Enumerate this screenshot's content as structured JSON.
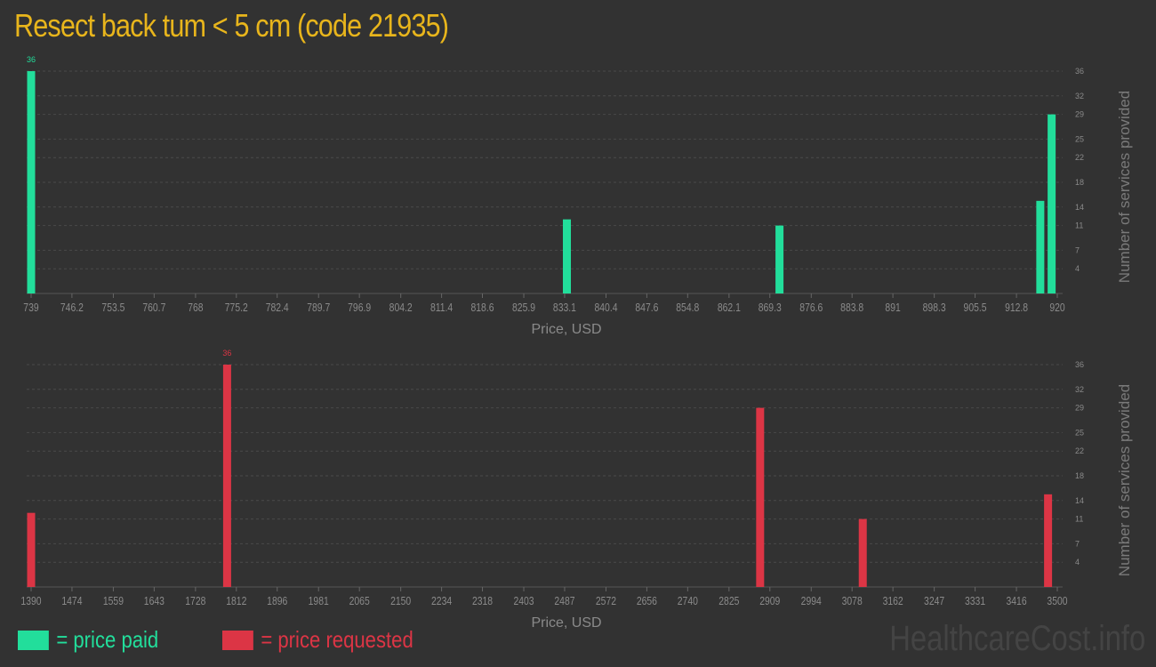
{
  "title": "Resect back tum < 5 cm (code 21935)",
  "legend": {
    "paid_label": "= price paid",
    "requested_label": "= price requested",
    "paid_color": "#22de9b",
    "requested_color": "#dc3545"
  },
  "watermark": "HealthcareCost.info",
  "chart_data": [
    {
      "type": "bar",
      "series_key": "price paid",
      "color": "#22de9b",
      "xlabel": "Price, USD",
      "ylabel": "Number of services provided",
      "xlim": [
        739,
        920
      ],
      "ylim": [
        0,
        36
      ],
      "grid": true,
      "x_ticks": [
        "739",
        "746.2",
        "753.5",
        "760.7",
        "768",
        "775.2",
        "782.4",
        "789.7",
        "796.9",
        "804.2",
        "811.4",
        "818.6",
        "825.9",
        "833.1",
        "840.4",
        "847.6",
        "854.8",
        "862.1",
        "869.3",
        "876.6",
        "883.8",
        "891",
        "898.3",
        "905.5",
        "912.8",
        "920"
      ],
      "y_ticks": [
        "4",
        "7",
        "11",
        "14",
        "18",
        "22",
        "25",
        "29",
        "32",
        "36"
      ],
      "x": [
        739,
        833.5,
        871,
        917,
        919
      ],
      "values": [
        36,
        12,
        11,
        15,
        29
      ],
      "data_labels": [
        "36",
        "",
        "",
        "",
        ""
      ]
    },
    {
      "type": "bar",
      "series_key": "price requested",
      "color": "#dc3545",
      "xlabel": "Price, USD",
      "ylabel": "Number of services provided",
      "xlim": [
        1390,
        3500
      ],
      "ylim": [
        0,
        36
      ],
      "grid": true,
      "x_ticks": [
        "1390",
        "1474",
        "1559",
        "1643",
        "1728",
        "1812",
        "1896",
        "1981",
        "2065",
        "2150",
        "2234",
        "2318",
        "2403",
        "2487",
        "2572",
        "2656",
        "2740",
        "2825",
        "2909",
        "2994",
        "3078",
        "3162",
        "3247",
        "3331",
        "3416",
        "3500"
      ],
      "y_ticks": [
        "4",
        "7",
        "11",
        "14",
        "18",
        "22",
        "25",
        "29",
        "32",
        "36"
      ],
      "x": [
        1390,
        1793,
        2889,
        3100,
        3481
      ],
      "values": [
        12,
        36,
        29,
        11,
        15
      ],
      "data_labels": [
        "",
        "36",
        "",
        "",
        ""
      ]
    }
  ]
}
